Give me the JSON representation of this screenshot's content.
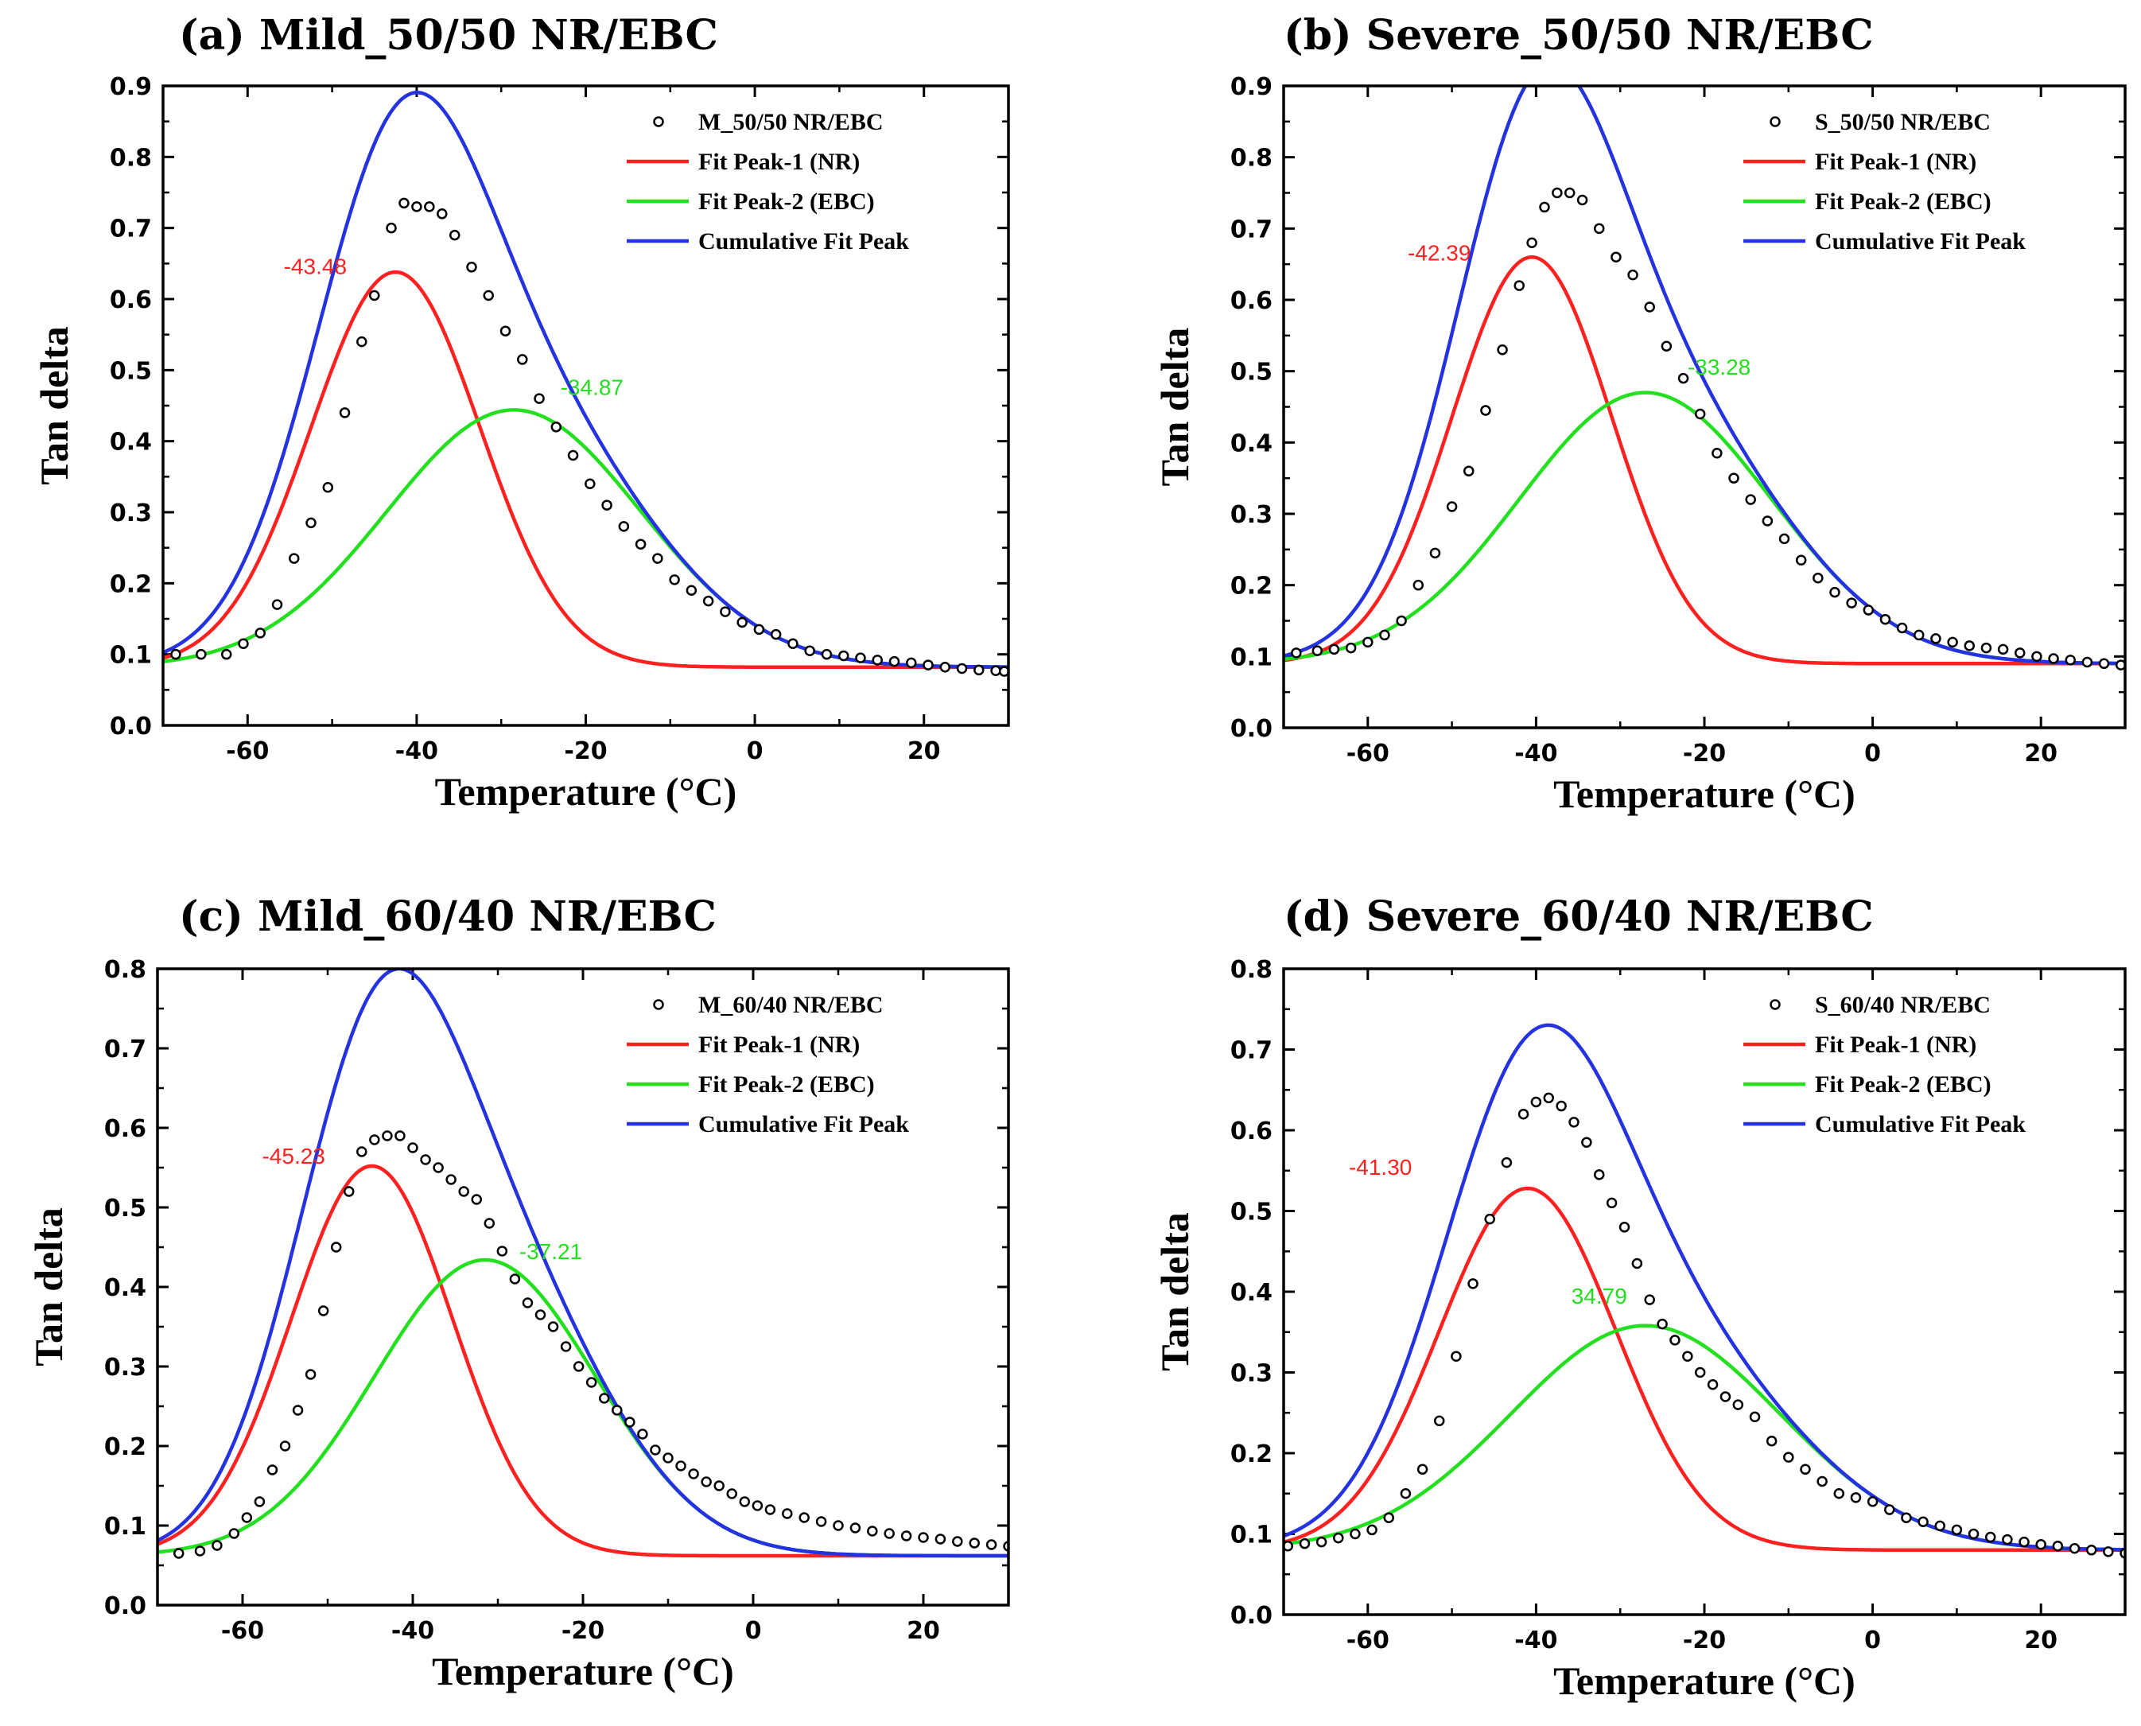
{
  "figure": {
    "x_label": "Temperature",
    "x_unit": "°C",
    "y_label": "Tan delta"
  },
  "series_styles": {
    "data": {
      "color": "#000000",
      "marker": "open-circle"
    },
    "peak1": {
      "color": "#ff2020"
    },
    "peak2": {
      "color": "#22e01e"
    },
    "cumulative": {
      "color": "#2432e0"
    }
  },
  "legend_labels": {
    "peak1": "Fit Peak-1 (NR)",
    "peak2": "Fit Peak-2 (EBC)",
    "cumulative": "Cumulative Fit Peak"
  },
  "chart_data": [
    {
      "type": "line",
      "title": "(a) Mild_50/50 NR/EBC",
      "xlabel": "Temperature (°C)",
      "ylabel": "Tan delta",
      "xlim": [
        -70,
        30
      ],
      "ylim": [
        0.0,
        0.9
      ],
      "xticks": [
        -60,
        -40,
        -20,
        0,
        20
      ],
      "yticks": [
        "0.0",
        "0.1",
        "0.2",
        "0.3",
        "0.4",
        "0.5",
        "0.6",
        "0.7",
        "0.8",
        "0.9"
      ],
      "legend": "top-right",
      "data_label": "M_50/50 NR/EBC",
      "baseline": 0.082,
      "peak1": {
        "center": -42.5,
        "height": 0.556,
        "width": 10.0
      },
      "peak2": {
        "center": -28.5,
        "height": 0.362,
        "width": 15.0
      },
      "peak_labels": [
        {
          "text": "-43.48",
          "x": -52,
          "y": 0.635,
          "color": "#ff2020",
          "anchor": "middle"
        },
        {
          "text": "-34.87",
          "x": -23,
          "y": 0.465,
          "color": "#22e01e",
          "anchor": "start"
        }
      ],
      "points": {
        "x": [
          -68.5,
          -65.5,
          -62.5,
          -60.5,
          -58.5,
          -56.5,
          -54.5,
          -52.5,
          -50.5,
          -48.5,
          -46.5,
          -45,
          -43,
          -41.5,
          -40,
          -38.5,
          -37,
          -35.5,
          -33.5,
          -31.5,
          -29.5,
          -27.5,
          -25.5,
          -23.5,
          -21.5,
          -19.5,
          -17.5,
          -15.5,
          -13.5,
          -11.5,
          -9.5,
          -7.5,
          -5.5,
          -3.5,
          -1.5,
          0.5,
          2.5,
          4.5,
          6.5,
          8.5,
          10.5,
          12.5,
          14.5,
          16.5,
          18.5,
          20.5,
          22.5,
          24.5,
          26.5,
          28.5,
          29.5
        ],
        "y": [
          0.1,
          0.1,
          0.1,
          0.115,
          0.13,
          0.17,
          0.235,
          0.285,
          0.335,
          0.44,
          0.54,
          0.605,
          0.7,
          0.735,
          0.73,
          0.73,
          0.72,
          0.69,
          0.645,
          0.605,
          0.555,
          0.515,
          0.46,
          0.42,
          0.38,
          0.34,
          0.31,
          0.28,
          0.255,
          0.235,
          0.205,
          0.19,
          0.175,
          0.16,
          0.145,
          0.135,
          0.128,
          0.115,
          0.105,
          0.1,
          0.098,
          0.095,
          0.092,
          0.09,
          0.088,
          0.085,
          0.082,
          0.08,
          0.078,
          0.077,
          0.076
        ]
      }
    },
    {
      "type": "line",
      "title": "(b) Severe_50/50 NR/EBC",
      "xlabel": "Temperature (°C)",
      "ylabel": "Tan delta",
      "xlim": [
        -70,
        30
      ],
      "ylim": [
        0.0,
        0.9
      ],
      "xticks": [
        -60,
        -40,
        -20,
        0,
        20
      ],
      "yticks": [
        "0.0",
        "0.1",
        "0.2",
        "0.3",
        "0.4",
        "0.5",
        "0.6",
        "0.7",
        "0.8",
        "0.9"
      ],
      "legend": "top-right",
      "data_label": "S_50/50 NR/EBC",
      "baseline": 0.09,
      "peak1": {
        "center": -40.5,
        "height": 0.57,
        "width": 9.5
      },
      "peak2": {
        "center": -27.0,
        "height": 0.38,
        "width": 15.0
      },
      "peak_labels": [
        {
          "text": "-42.39",
          "x": -51.5,
          "y": 0.655,
          "color": "#ff2020",
          "anchor": "middle"
        },
        {
          "text": "-33.28",
          "x": -22,
          "y": 0.495,
          "color": "#22e01e",
          "anchor": "start"
        }
      ],
      "points": {
        "x": [
          -68.5,
          -66,
          -64,
          -62,
          -60,
          -58,
          -56,
          -54,
          -52,
          -50,
          -48,
          -46,
          -44,
          -42,
          -40.5,
          -39,
          -37.5,
          -36,
          -34.5,
          -32.5,
          -30.5,
          -28.5,
          -26.5,
          -24.5,
          -22.5,
          -20.5,
          -18.5,
          -16.5,
          -14.5,
          -12.5,
          -10.5,
          -8.5,
          -6.5,
          -4.5,
          -2.5,
          -0.5,
          1.5,
          3.5,
          5.5,
          7.5,
          9.5,
          11.5,
          13.5,
          15.5,
          17.5,
          19.5,
          21.5,
          23.5,
          25.5,
          27.5,
          29.5
        ],
        "y": [
          0.105,
          0.108,
          0.11,
          0.112,
          0.12,
          0.13,
          0.15,
          0.2,
          0.245,
          0.31,
          0.36,
          0.445,
          0.53,
          0.62,
          0.68,
          0.73,
          0.75,
          0.75,
          0.74,
          0.7,
          0.66,
          0.635,
          0.59,
          0.535,
          0.49,
          0.44,
          0.385,
          0.35,
          0.32,
          0.29,
          0.265,
          0.235,
          0.21,
          0.19,
          0.175,
          0.165,
          0.152,
          0.14,
          0.13,
          0.125,
          0.12,
          0.115,
          0.112,
          0.11,
          0.105,
          0.1,
          0.097,
          0.095,
          0.092,
          0.09,
          0.088
        ]
      }
    },
    {
      "type": "line",
      "title": "(c) Mild_60/40 NR/EBC",
      "xlabel": "Temperature (°C)",
      "ylabel": "Tan delta",
      "xlim": [
        -70,
        30
      ],
      "ylim": [
        0.0,
        0.8
      ],
      "xticks": [
        -60,
        -40,
        -20,
        0,
        20
      ],
      "yticks": [
        "0.0",
        "0.1",
        "0.2",
        "0.3",
        "0.4",
        "0.5",
        "0.6",
        "0.7",
        "0.8"
      ],
      "legend": "top-right",
      "data_label": "M_60/40 NR/EBC",
      "baseline": 0.062,
      "peak1": {
        "center": -44.8,
        "height": 0.49,
        "width": 9.5
      },
      "peak2": {
        "center": -31.5,
        "height": 0.372,
        "width": 13.0
      },
      "peak_labels": [
        {
          "text": "-45.23",
          "x": -54,
          "y": 0.555,
          "color": "#ff2020",
          "anchor": "middle"
        },
        {
          "text": "-37.21",
          "x": -27.5,
          "y": 0.435,
          "color": "#22e01e",
          "anchor": "start"
        }
      ],
      "points": {
        "x": [
          -67.5,
          -65,
          -63,
          -61,
          -59.5,
          -58,
          -56.5,
          -55,
          -53.5,
          -52,
          -50.5,
          -49,
          -47.5,
          -46,
          -44.5,
          -43,
          -41.5,
          -40,
          -38.5,
          -37,
          -35.5,
          -34,
          -32.5,
          -31,
          -29.5,
          -28,
          -26.5,
          -25,
          -23.5,
          -22,
          -20.5,
          -19,
          -17.5,
          -16,
          -14.5,
          -13,
          -11.5,
          -10,
          -8.5,
          -7,
          -5.5,
          -4,
          -2.5,
          -1,
          0.5,
          2,
          4,
          6,
          8,
          10,
          12,
          14,
          16,
          18,
          20,
          22,
          24,
          26,
          28,
          30
        ],
        "y": [
          0.065,
          0.068,
          0.075,
          0.09,
          0.11,
          0.13,
          0.17,
          0.2,
          0.245,
          0.29,
          0.37,
          0.45,
          0.52,
          0.57,
          0.585,
          0.59,
          0.59,
          0.575,
          0.56,
          0.55,
          0.535,
          0.52,
          0.51,
          0.48,
          0.445,
          0.41,
          0.38,
          0.365,
          0.35,
          0.325,
          0.3,
          0.28,
          0.26,
          0.245,
          0.23,
          0.215,
          0.195,
          0.185,
          0.175,
          0.165,
          0.155,
          0.15,
          0.14,
          0.13,
          0.125,
          0.12,
          0.115,
          0.11,
          0.105,
          0.1,
          0.097,
          0.093,
          0.09,
          0.087,
          0.085,
          0.083,
          0.08,
          0.078,
          0.076,
          0.074
        ]
      }
    },
    {
      "type": "line",
      "title": "(d) Severe_60/40 NR/EBC",
      "xlabel": "Temperature (°C)",
      "ylabel": "Tan delta",
      "xlim": [
        -70,
        30
      ],
      "ylim": [
        0.0,
        0.8
      ],
      "xticks": [
        -60,
        -40,
        -20,
        0,
        20
      ],
      "yticks": [
        "0.0",
        "0.1",
        "0.2",
        "0.3",
        "0.4",
        "0.5",
        "0.6",
        "0.7",
        "0.8"
      ],
      "legend": "top-right",
      "data_label": "S_60/40 NR/EBC",
      "baseline": 0.08,
      "peak1": {
        "center": -41.0,
        "height": 0.448,
        "width": 10.5
      },
      "peak2": {
        "center": -27.0,
        "height": 0.278,
        "width": 16.0
      },
      "peak_labels": [
        {
          "text": "-41.30",
          "x": -58.5,
          "y": 0.545,
          "color": "#ff2020",
          "anchor": "middle"
        },
        {
          "text": "34.79",
          "x": -32.5,
          "y": 0.385,
          "color": "#22e01e",
          "anchor": "middle"
        }
      ],
      "points": {
        "x": [
          -69.5,
          -67.5,
          -65.5,
          -63.5,
          -61.5,
          -59.5,
          -57.5,
          -55.5,
          -53.5,
          -51.5,
          -49.5,
          -47.5,
          -45.5,
          -43.5,
          -41.5,
          -40,
          -38.5,
          -37,
          -35.5,
          -34,
          -32.5,
          -31,
          -29.5,
          -28,
          -26.5,
          -25,
          -23.5,
          -22,
          -20.5,
          -19,
          -17.5,
          -16,
          -14,
          -12,
          -10,
          -8,
          -6,
          -4,
          -2,
          0,
          2,
          4,
          6,
          8,
          10,
          12,
          14,
          16,
          18,
          20,
          22,
          24,
          26,
          28,
          30
        ],
        "y": [
          0.085,
          0.088,
          0.09,
          0.095,
          0.1,
          0.105,
          0.12,
          0.15,
          0.18,
          0.24,
          0.32,
          0.41,
          0.49,
          0.56,
          0.62,
          0.635,
          0.64,
          0.63,
          0.61,
          0.585,
          0.545,
          0.51,
          0.48,
          0.435,
          0.39,
          0.36,
          0.34,
          0.32,
          0.3,
          0.285,
          0.27,
          0.26,
          0.245,
          0.215,
          0.195,
          0.18,
          0.165,
          0.15,
          0.145,
          0.14,
          0.13,
          0.12,
          0.115,
          0.11,
          0.105,
          0.1,
          0.096,
          0.093,
          0.09,
          0.087,
          0.085,
          0.082,
          0.08,
          0.078,
          0.076
        ]
      }
    }
  ]
}
